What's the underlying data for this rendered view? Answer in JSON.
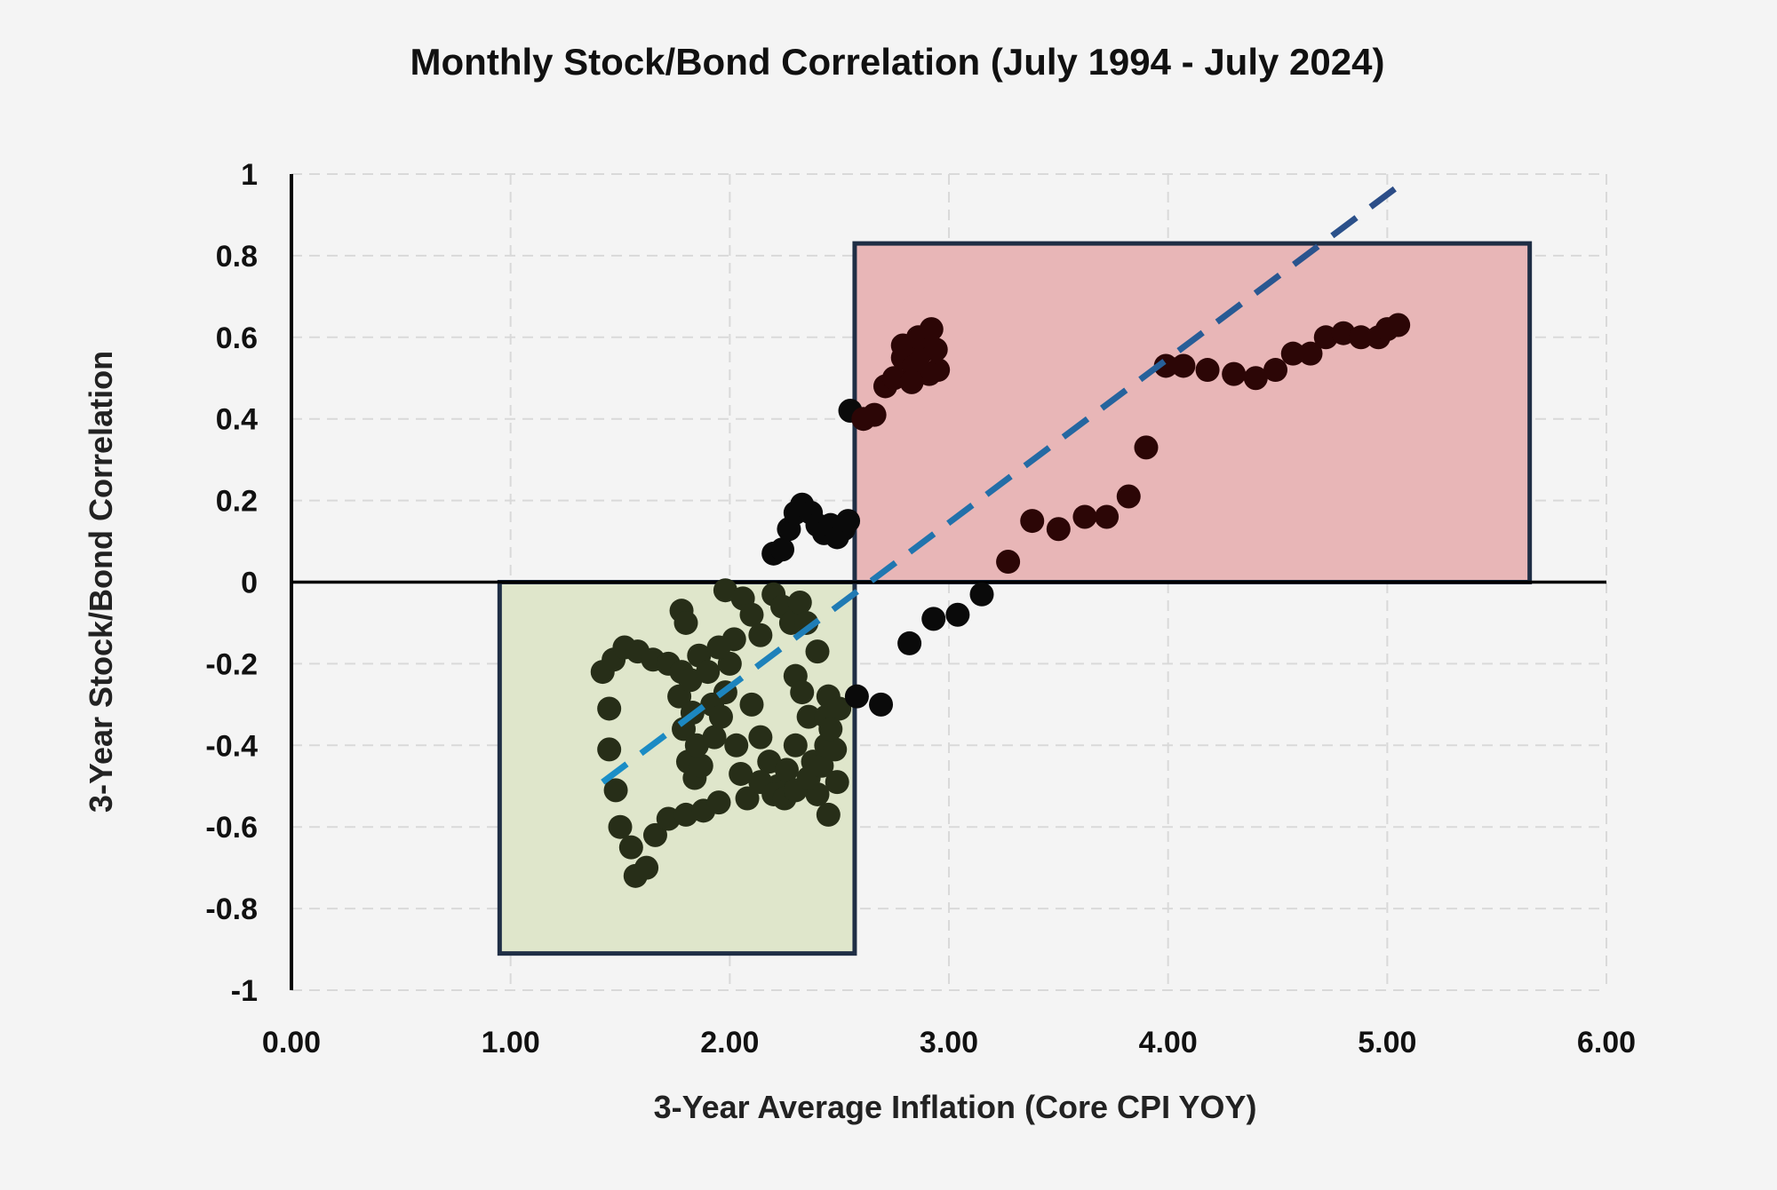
{
  "chart_data": {
    "type": "scatter",
    "title": "Monthly Stock/Bond Correlation (July 1994  - July 2024)",
    "xlabel": "3-Year Average Inflation (Core CPI YOY)",
    "ylabel": "3-Year Stock/Bond Correlation",
    "xlim": [
      0,
      6
    ],
    "ylim": [
      -1,
      1
    ],
    "x_ticks": [
      "0.00",
      "1.00",
      "2.00",
      "3.00",
      "4.00",
      "5.00",
      "6.00"
    ],
    "y_ticks": [
      "1",
      "0.8",
      "0.6",
      "0.4",
      "0.2",
      "0",
      "-0.2",
      "-0.4",
      "-0.6",
      "-0.8",
      "-1"
    ],
    "grid": true,
    "legend": "none",
    "colors": {
      "background": "#f4f4f4",
      "grid": "#d9d9d9",
      "green_box_fill": "#dfe6cb",
      "red_box_fill": "#e8b6b7",
      "box_border": "#1f2e45",
      "trend_start": "#1a8fc8",
      "trend_end": "#2c4c86",
      "point_green": "#272e18",
      "point_red": "#2c0606",
      "point_black": "#0a0a0a"
    },
    "regions": [
      {
        "fill": "green",
        "x": [
          0.95,
          2.57
        ],
        "y": [
          -0.91,
          0
        ]
      },
      {
        "fill": "red",
        "x": [
          2.57,
          5.65
        ],
        "y": [
          0,
          0.83
        ]
      }
    ],
    "trendline": {
      "x": [
        1.42,
        5.05
      ],
      "y": [
        -0.49,
        0.97
      ]
    },
    "series": [
      {
        "color": "point_green",
        "points": [
          [
            1.42,
            -0.22
          ],
          [
            1.45,
            -0.31
          ],
          [
            1.45,
            -0.41
          ],
          [
            1.48,
            -0.51
          ],
          [
            1.47,
            -0.19
          ],
          [
            1.52,
            -0.16
          ],
          [
            1.58,
            -0.17
          ],
          [
            1.65,
            -0.19
          ],
          [
            1.72,
            -0.2
          ],
          [
            1.78,
            -0.22
          ],
          [
            1.5,
            -0.6
          ],
          [
            1.55,
            -0.65
          ],
          [
            1.57,
            -0.72
          ],
          [
            1.62,
            -0.7
          ],
          [
            1.66,
            -0.62
          ],
          [
            1.72,
            -0.58
          ],
          [
            1.8,
            -0.57
          ],
          [
            1.88,
            -0.56
          ],
          [
            1.95,
            -0.54
          ],
          [
            1.78,
            -0.07
          ],
          [
            1.8,
            -0.1
          ],
          [
            1.77,
            -0.28
          ],
          [
            1.79,
            -0.36
          ],
          [
            1.81,
            -0.44
          ],
          [
            1.84,
            -0.48
          ],
          [
            1.87,
            -0.45
          ],
          [
            1.85,
            -0.4
          ],
          [
            1.83,
            -0.32
          ],
          [
            1.82,
            -0.24
          ],
          [
            1.86,
            -0.18
          ],
          [
            1.9,
            -0.22
          ],
          [
            1.92,
            -0.3
          ],
          [
            1.93,
            -0.38
          ],
          [
            1.96,
            -0.33
          ],
          [
            1.98,
            -0.27
          ],
          [
            2.0,
            -0.2
          ],
          [
            2.02,
            -0.14
          ],
          [
            1.95,
            -0.16
          ],
          [
            2.03,
            -0.4
          ],
          [
            2.05,
            -0.47
          ],
          [
            1.98,
            -0.02
          ],
          [
            2.06,
            -0.04
          ],
          [
            2.1,
            -0.08
          ],
          [
            2.14,
            -0.13
          ],
          [
            2.2,
            -0.03
          ],
          [
            2.24,
            -0.06
          ],
          [
            2.28,
            -0.1
          ],
          [
            2.32,
            -0.05
          ],
          [
            2.35,
            -0.1
          ],
          [
            2.1,
            -0.3
          ],
          [
            2.14,
            -0.38
          ],
          [
            2.18,
            -0.44
          ],
          [
            2.22,
            -0.5
          ],
          [
            2.26,
            -0.46
          ],
          [
            2.3,
            -0.4
          ],
          [
            2.3,
            -0.23
          ],
          [
            2.33,
            -0.27
          ],
          [
            2.36,
            -0.33
          ],
          [
            2.38,
            -0.44
          ],
          [
            2.4,
            -0.52
          ],
          [
            2.08,
            -0.53
          ],
          [
            2.14,
            -0.49
          ],
          [
            2.2,
            -0.52
          ],
          [
            2.25,
            -0.53
          ],
          [
            2.3,
            -0.51
          ],
          [
            2.36,
            -0.48
          ],
          [
            2.42,
            -0.45
          ],
          [
            2.45,
            -0.57
          ],
          [
            2.44,
            -0.4
          ],
          [
            2.44,
            -0.33
          ],
          [
            2.4,
            -0.17
          ],
          [
            2.45,
            -0.28
          ],
          [
            2.5,
            -0.31
          ],
          [
            2.48,
            -0.41
          ],
          [
            2.49,
            -0.49
          ],
          [
            2.46,
            -0.36
          ]
        ]
      },
      {
        "color": "point_black",
        "points": [
          [
            2.2,
            0.07
          ],
          [
            2.24,
            0.08
          ],
          [
            2.27,
            0.13
          ],
          [
            2.3,
            0.17
          ],
          [
            2.33,
            0.19
          ],
          [
            2.37,
            0.17
          ],
          [
            2.4,
            0.14
          ],
          [
            2.43,
            0.12
          ],
          [
            2.46,
            0.14
          ],
          [
            2.49,
            0.11
          ],
          [
            2.52,
            0.13
          ],
          [
            2.54,
            0.15
          ],
          [
            2.55,
            0.42
          ],
          [
            2.58,
            -0.28
          ],
          [
            2.69,
            -0.3
          ],
          [
            2.82,
            -0.15
          ],
          [
            2.93,
            -0.09
          ],
          [
            3.04,
            -0.08
          ],
          [
            3.15,
            -0.03
          ]
        ]
      },
      {
        "color": "point_red",
        "points": [
          [
            2.61,
            0.4
          ],
          [
            2.66,
            0.41
          ],
          [
            2.71,
            0.48
          ],
          [
            2.75,
            0.5
          ],
          [
            2.79,
            0.55
          ],
          [
            2.84,
            0.53
          ],
          [
            2.87,
            0.56
          ],
          [
            2.9,
            0.6
          ],
          [
            2.94,
            0.57
          ],
          [
            2.95,
            0.52
          ],
          [
            2.91,
            0.51
          ],
          [
            2.83,
            0.49
          ],
          [
            2.79,
            0.58
          ],
          [
            2.86,
            0.6
          ],
          [
            2.92,
            0.62
          ],
          [
            3.27,
            0.05
          ],
          [
            3.38,
            0.15
          ],
          [
            3.5,
            0.13
          ],
          [
            3.62,
            0.16
          ],
          [
            3.72,
            0.16
          ],
          [
            3.82,
            0.21
          ],
          [
            3.9,
            0.33
          ],
          [
            3.99,
            0.53
          ],
          [
            4.07,
            0.53
          ],
          [
            4.18,
            0.52
          ],
          [
            4.3,
            0.51
          ],
          [
            4.4,
            0.5
          ],
          [
            4.49,
            0.52
          ],
          [
            4.57,
            0.56
          ],
          [
            4.65,
            0.56
          ],
          [
            4.72,
            0.6
          ],
          [
            4.8,
            0.61
          ],
          [
            4.88,
            0.6
          ],
          [
            4.96,
            0.6
          ],
          [
            5.0,
            0.62
          ],
          [
            5.05,
            0.63
          ]
        ]
      }
    ]
  }
}
